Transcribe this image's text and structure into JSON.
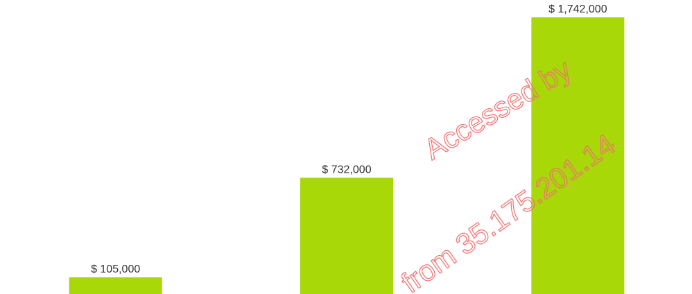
{
  "chart_data": {
    "type": "bar",
    "categories": [
      null,
      null,
      null
    ],
    "values": [
      105000,
      732000,
      1742000
    ],
    "value_labels": [
      "$ 105,000",
      "$ 732,000",
      "$ 1,742,000"
    ],
    "color": "#a8d808",
    "watermark": [
      "Accessed by",
      "from 35.175.201.14"
    ]
  }
}
